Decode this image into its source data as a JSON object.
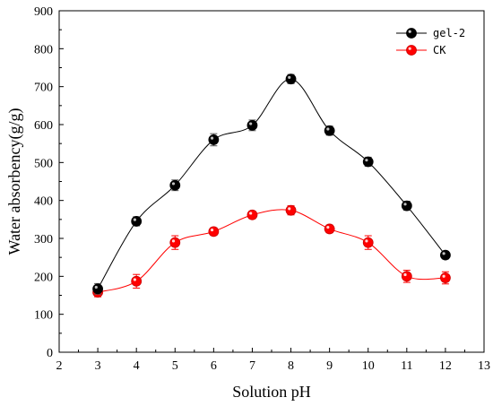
{
  "chart_data": {
    "type": "line",
    "xlabel": "Solution pH",
    "ylabel": "Water absorbency(g/g)",
    "xlim": [
      2,
      13
    ],
    "ylim": [
      0,
      900
    ],
    "x_ticks": [
      2,
      3,
      4,
      5,
      6,
      7,
      8,
      9,
      10,
      11,
      12,
      13
    ],
    "y_ticks": [
      0,
      100,
      200,
      300,
      400,
      500,
      600,
      700,
      800,
      900
    ],
    "grid": false,
    "legend_position": "top-right",
    "markers": "filled circles with error bars",
    "x": [
      3,
      4,
      5,
      6,
      7,
      8,
      9,
      10,
      11,
      12
    ],
    "series": [
      {
        "name": "gel-2",
        "color": "#000000",
        "values": [
          167,
          345,
          440,
          560,
          598,
          720,
          584,
          502,
          386,
          256
        ],
        "errors": [
          14,
          12,
          14,
          16,
          14,
          12,
          12,
          12,
          12,
          10
        ]
      },
      {
        "name": "CK",
        "color": "#ff0000",
        "values": [
          158,
          187,
          289,
          318,
          362,
          374,
          325,
          289,
          200,
          196
        ],
        "errors": [
          12,
          18,
          18,
          10,
          10,
          12,
          10,
          18,
          16,
          16
        ]
      }
    ]
  }
}
